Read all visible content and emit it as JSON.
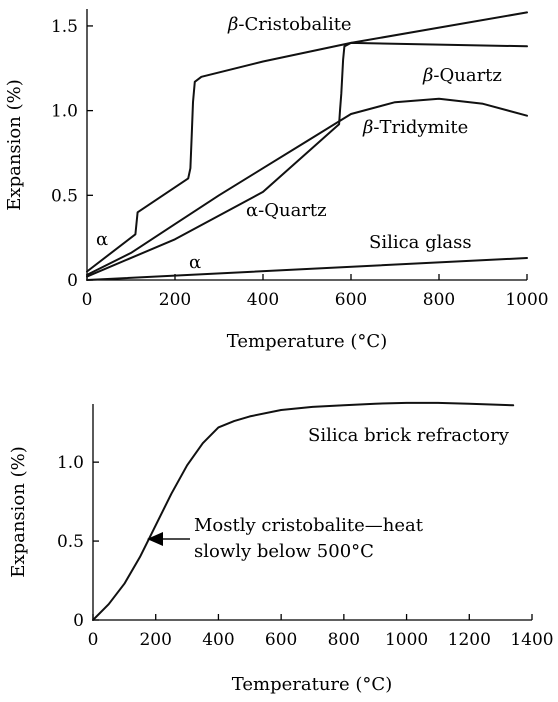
{
  "chart_data": [
    {
      "type": "line",
      "xlabel": "Temperature (°C)",
      "ylabel": "Expansion (%)",
      "xlim": [
        0,
        1000
      ],
      "ylim": [
        0,
        1.6
      ],
      "xticks": [
        "0",
        "200",
        "400",
        "600",
        "800",
        "1000"
      ],
      "yticks": [
        "0",
        "0.5",
        "1.0",
        "1.5"
      ],
      "grid": false,
      "series": [
        {
          "name": "β-Cristobalite",
          "x": [
            0,
            110,
            115,
            230,
            235,
            238,
            241,
            245,
            260,
            400,
            600,
            800,
            1000
          ],
          "y": [
            0.05,
            0.27,
            0.4,
            0.6,
            0.66,
            0.85,
            1.05,
            1.17,
            1.2,
            1.29,
            1.4,
            1.49,
            1.58
          ]
        },
        {
          "name": "β-Quartz",
          "x": [
            0,
            200,
            400,
            573,
            575,
            578,
            580,
            582,
            585,
            600,
            800,
            1000
          ],
          "y": [
            0.02,
            0.24,
            0.52,
            0.92,
            1.0,
            1.1,
            1.2,
            1.3,
            1.38,
            1.4,
            1.39,
            1.38
          ]
        },
        {
          "name": "β-Tridymite",
          "x": [
            0,
            100,
            200,
            300,
            400,
            500,
            600,
            700,
            800,
            900,
            1000
          ],
          "y": [
            0.03,
            0.16,
            0.33,
            0.5,
            0.66,
            0.82,
            0.98,
            1.05,
            1.07,
            1.04,
            0.97
          ]
        },
        {
          "name": "Silica glass",
          "x": [
            0,
            1000
          ],
          "y": [
            0,
            0.13
          ]
        }
      ],
      "annotations": [
        "β-Cristobalite",
        "β-Quartz",
        "β-Tridymite",
        "α-Quartz",
        "Silica glass",
        "α",
        "α"
      ]
    },
    {
      "type": "line",
      "xlabel": "Temperature (°C)",
      "ylabel": "Expansion (%)",
      "xlim": [
        0,
        1400
      ],
      "ylim": [
        0,
        1.4
      ],
      "xticks": [
        "0",
        "200",
        "400",
        "600",
        "800",
        "1000",
        "1200",
        "1400"
      ],
      "yticks": [
        "0",
        "0.5",
        "1.0"
      ],
      "grid": false,
      "series": [
        {
          "name": "Silica brick refractory",
          "x": [
            0,
            50,
            100,
            150,
            200,
            250,
            300,
            350,
            400,
            450,
            500,
            600,
            700,
            800,
            900,
            1000,
            1100,
            1200,
            1340
          ],
          "y": [
            0,
            0.1,
            0.23,
            0.4,
            0.6,
            0.8,
            0.98,
            1.12,
            1.22,
            1.26,
            1.29,
            1.33,
            1.35,
            1.36,
            1.37,
            1.375,
            1.375,
            1.37,
            1.36
          ]
        }
      ],
      "annotations": [
        "Silica brick refractory",
        "Mostly cristobalite—heat",
        "slowly below 500°C"
      ]
    }
  ],
  "labels": {
    "cristobalite_prefix": "β",
    "cristobalite_name": "-Cristobalite",
    "quartz_prefix": "β",
    "quartz_name": "-Quartz",
    "tridymite_prefix": "β",
    "tridymite_name": "-Tridymite",
    "alpha_quartz": "α-Quartz",
    "silica_glass": "Silica glass",
    "alpha_1": "α",
    "alpha_2": "α",
    "brick": "Silica brick refractory",
    "note_line1": "Mostly cristobalite—heat",
    "note_line2": "slowly below 500°C"
  }
}
